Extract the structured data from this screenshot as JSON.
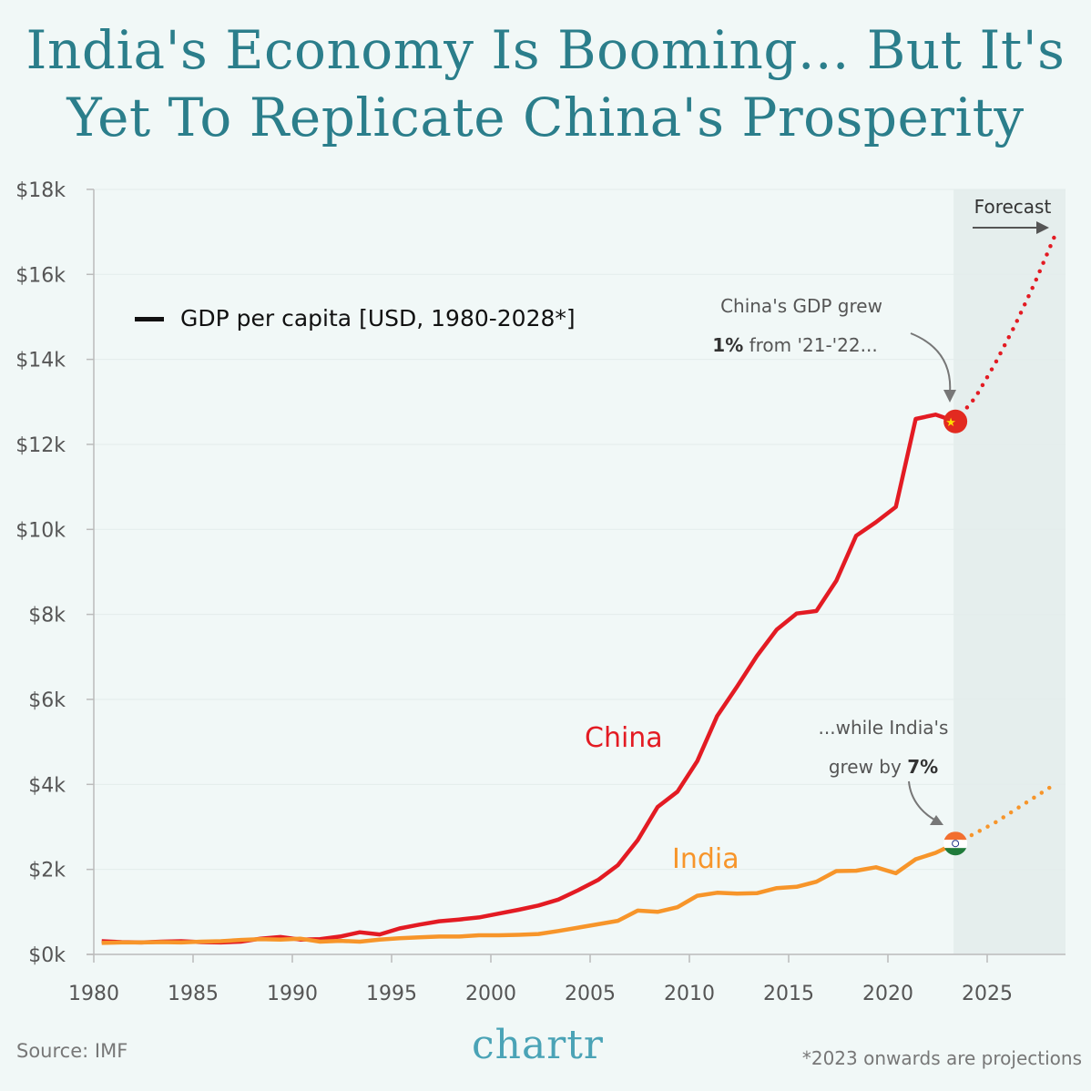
{
  "title_line1": "India's Economy Is Booming... But It's",
  "title_line2": "Yet To Replicate China's Prosperity",
  "source": "Source: IMF",
  "footnote": "*2023 onwards are projections",
  "logo": "chartr",
  "chart_data": {
    "type": "line",
    "title": "India's Economy Is Booming... But It's Yet To Replicate China's Prosperity",
    "legend": "GDP per capita [USD, 1980-2028*]",
    "legend_placement": "top-left",
    "xlim": [
      1980,
      2028
    ],
    "ylim": [
      0,
      18
    ],
    "x_ticks": [
      "1980",
      "1985",
      "1990",
      "1995",
      "2000",
      "2005",
      "2010",
      "2015",
      "2020",
      "2025"
    ],
    "y_ticks": [
      "$0k",
      "$2k",
      "$4k",
      "$6k",
      "$8k",
      "$10k",
      "$12k",
      "$14k",
      "$16k",
      "$18k"
    ],
    "grid": "horizontal",
    "forecast_start": 2023,
    "forecast_label": "Forecast",
    "unit": "thousand USD",
    "x": [
      1980,
      1981,
      1982,
      1983,
      1984,
      1985,
      1986,
      1987,
      1988,
      1989,
      1990,
      1991,
      1992,
      1993,
      1994,
      1995,
      1996,
      1997,
      1998,
      1999,
      2000,
      2001,
      2002,
      2003,
      2004,
      2005,
      2006,
      2007,
      2008,
      2009,
      2010,
      2011,
      2012,
      2013,
      2014,
      2015,
      2016,
      2017,
      2018,
      2019,
      2020,
      2021,
      2022,
      2023,
      2024,
      2025,
      2026,
      2027,
      2028
    ],
    "series": [
      {
        "name": "China",
        "color": "#e31b23",
        "values": [
          0.31,
          0.29,
          0.28,
          0.3,
          0.31,
          0.29,
          0.28,
          0.3,
          0.37,
          0.41,
          0.35,
          0.36,
          0.42,
          0.52,
          0.47,
          0.61,
          0.7,
          0.78,
          0.82,
          0.87,
          0.96,
          1.05,
          1.15,
          1.29,
          1.51,
          1.75,
          2.1,
          2.69,
          3.47,
          3.83,
          4.55,
          5.61,
          6.3,
          7.02,
          7.64,
          8.02,
          8.08,
          8.79,
          9.85,
          10.17,
          10.53,
          12.6,
          12.7,
          12.54,
          13.1,
          13.9,
          14.8,
          15.8,
          16.9
        ]
      },
      {
        "name": "India",
        "color": "#f7952a",
        "values": [
          0.27,
          0.28,
          0.28,
          0.29,
          0.28,
          0.3,
          0.31,
          0.34,
          0.36,
          0.35,
          0.37,
          0.3,
          0.32,
          0.3,
          0.35,
          0.38,
          0.4,
          0.42,
          0.42,
          0.45,
          0.45,
          0.46,
          0.48,
          0.55,
          0.63,
          0.71,
          0.79,
          1.03,
          1.0,
          1.11,
          1.38,
          1.45,
          1.43,
          1.44,
          1.56,
          1.59,
          1.71,
          1.96,
          1.97,
          2.05,
          1.91,
          2.24,
          2.39,
          2.61,
          2.85,
          3.1,
          3.4,
          3.7,
          4.0
        ]
      }
    ],
    "annotations": {
      "china_1": "China's GDP grew",
      "china_2_bold": "1%",
      "china_2_rest": " from '21-'22...",
      "india_1": "...while India's",
      "india_2_rest": "grew by ",
      "india_2_bold": "7%"
    },
    "flag_icons": [
      "china-flag",
      "india-flag"
    ]
  }
}
